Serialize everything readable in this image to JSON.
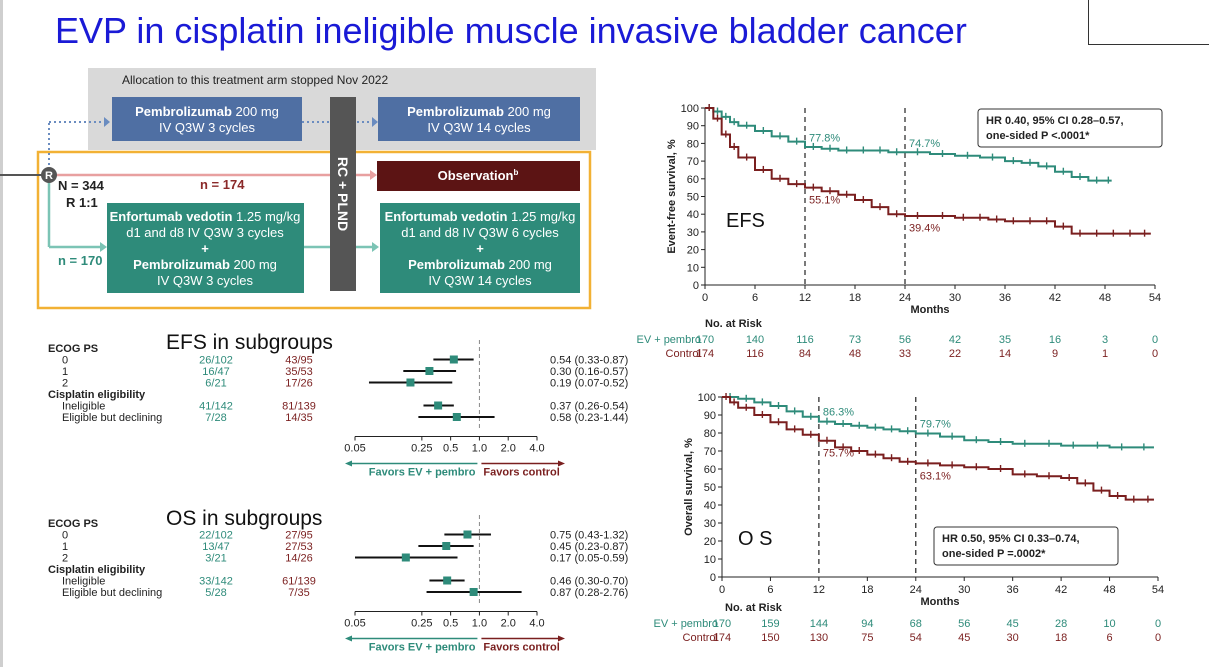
{
  "slide": {
    "title": "EVP in cisplatin ineligible muscle invasive bladder cancer"
  },
  "design": {
    "stopped_banner": "Allocation to this treatment arm stopped Nov 2022",
    "pembro_pre_bold": "Pembrolizumab",
    "pembro_pre_dose": " 200 mg",
    "pembro_pre_line2": "IV Q3W 3 cycles",
    "pembro_post_bold": "Pembrolizumab",
    "pembro_post_dose": " 200 mg",
    "pembro_post_line2": "IV Q3W 14 cycles",
    "r_label": "R",
    "n_total": "N = 344",
    "ratio": "R 1:1",
    "n_control": "n = 174",
    "n_ev": "n = 170",
    "surgery": "RC + PLND",
    "observation": "Observation",
    "observation_sup": "b",
    "ev_pre_bold": "Enfortumab vedotin",
    "ev_pre_dose": " 1.25 mg/kg",
    "ev_pre_line2": "d1 and d8 IV Q3W 3 cycles",
    "ev_pre_plus": "+",
    "ev_pre_pem_bold": "Pembrolizumab",
    "ev_pre_pem_dose": " 200 mg",
    "ev_pre_pem_line2": "IV Q3W 3 cycles",
    "ev_post_bold": "Enfortumab vedotin",
    "ev_post_dose": " 1.25 mg/kg",
    "ev_post_line2": "d1 and d8 IV Q3W 6 cycles",
    "ev_post_plus": "+",
    "ev_post_pem_bold": "Pembrolizumab",
    "ev_post_pem_dose": " 200 mg",
    "ev_post_pem_line2": "IV Q3W 14 cycles"
  },
  "subgroups": {
    "efs_title": "EFS in subgroups",
    "os_title": "OS in subgroups"
  },
  "colors": {
    "ev": "#2e8b7a",
    "control": "#7a1f1f",
    "title_blue": "#1a1ad6",
    "design_blue": "#4f6fa3",
    "design_teal": "#2e8b7a",
    "observation": "#5c1414",
    "frame": "#f2b134"
  },
  "chart_data": [
    {
      "type": "line",
      "panel": "EFS",
      "panel_label": "EFS",
      "ylabel": "Event-free survival, %",
      "xlabel": "Months",
      "xlim": [
        0,
        54
      ],
      "ylim": [
        0,
        100
      ],
      "xticks": [
        0,
        6,
        12,
        18,
        24,
        30,
        36,
        42,
        48,
        54
      ],
      "yticks": [
        0,
        10,
        20,
        30,
        40,
        50,
        60,
        70,
        80,
        90,
        100
      ],
      "series": [
        {
          "name": "EV + pembro",
          "color": "#2e8b7a",
          "x": [
            0,
            1,
            2,
            3,
            4,
            6,
            8,
            10,
            12,
            14,
            16,
            18,
            20,
            22,
            24,
            27,
            30,
            33,
            36,
            38,
            40,
            42,
            44,
            46,
            48,
            48.8
          ],
          "y": [
            100,
            98,
            95,
            92,
            90,
            87,
            84,
            81,
            78,
            77,
            76,
            76,
            76,
            75,
            75,
            74,
            73,
            72,
            70,
            69,
            67,
            64,
            61,
            59,
            59,
            59
          ]
        },
        {
          "name": "Control",
          "color": "#7a1f1f",
          "x": [
            0,
            1,
            2,
            3,
            4,
            6,
            8,
            10,
            12,
            14,
            16,
            18,
            20,
            22,
            24,
            27,
            30,
            32,
            34,
            36,
            38,
            40,
            42,
            44,
            46,
            48,
            50,
            52,
            53.5
          ],
          "y": [
            100,
            94,
            85,
            78,
            72,
            65,
            60,
            57,
            55,
            53,
            51,
            48,
            44,
            40,
            39,
            39,
            38,
            38,
            37,
            36,
            36,
            36,
            33,
            29,
            29,
            29,
            29,
            29,
            29
          ]
        }
      ],
      "annotations": [
        {
          "x": 12,
          "y": 77.8,
          "text": "77.8%",
          "series": "EV + pembro"
        },
        {
          "x": 24,
          "y": 74.7,
          "text": "74.7%",
          "series": "EV + pembro"
        },
        {
          "x": 12,
          "y": 55.1,
          "text": "55.1%",
          "series": "Control"
        },
        {
          "x": 24,
          "y": 39.4,
          "text": "39.4%",
          "series": "Control"
        }
      ],
      "dashed_vlines": [
        12,
        24
      ],
      "hr_box": [
        "HR 0.40, 95% CI 0.28–0.57,",
        "one-sided P <.0001*"
      ],
      "risk_table": {
        "header": "No. at Risk",
        "rows": [
          {
            "label": "EV + pembro",
            "values": [
              170,
              140,
              116,
              73,
              56,
              42,
              35,
              16,
              3,
              0
            ]
          },
          {
            "label": "Control",
            "values": [
              174,
              116,
              84,
              48,
              33,
              22,
              14,
              9,
              1,
              0
            ]
          }
        ]
      }
    },
    {
      "type": "line",
      "panel": "OS",
      "panel_label": "O S",
      "ylabel": "Overall survival, %",
      "xlabel": "Months",
      "xlim": [
        0,
        54
      ],
      "ylim": [
        0,
        100
      ],
      "xticks": [
        0,
        6,
        12,
        18,
        24,
        30,
        36,
        42,
        48,
        54
      ],
      "yticks": [
        0,
        10,
        20,
        30,
        40,
        50,
        60,
        70,
        80,
        90,
        100
      ],
      "series": [
        {
          "name": "EV + pembro",
          "color": "#2e8b7a",
          "x": [
            0,
            2,
            4,
            6,
            8,
            10,
            12,
            14,
            16,
            18,
            20,
            22,
            24,
            27,
            30,
            33,
            36,
            39,
            42,
            45,
            48,
            51,
            53.5
          ],
          "y": [
            100,
            99,
            97,
            95,
            92,
            89,
            86.3,
            85,
            84,
            83,
            82,
            81,
            79.7,
            78,
            76,
            75,
            74,
            74,
            73,
            73,
            72,
            72,
            72
          ]
        },
        {
          "name": "Control",
          "color": "#7a1f1f",
          "x": [
            0,
            1,
            2,
            4,
            6,
            8,
            10,
            12,
            14,
            16,
            18,
            20,
            22,
            24,
            27,
            30,
            33,
            36,
            39,
            42,
            44,
            46,
            48,
            50,
            52,
            53.5
          ],
          "y": [
            100,
            97,
            94,
            90,
            86,
            82,
            79,
            75.7,
            72,
            70,
            68,
            66,
            64,
            63.1,
            62,
            61,
            60,
            57,
            56,
            55,
            52,
            48,
            45,
            43,
            43,
            43
          ]
        }
      ],
      "annotations": [
        {
          "x": 12,
          "y": 86.3,
          "text": "86.3%",
          "series": "EV + pembro"
        },
        {
          "x": 24,
          "y": 79.7,
          "text": "79.7%",
          "series": "EV + pembro"
        },
        {
          "x": 12,
          "y": 75.7,
          "text": "75.7%",
          "series": "Control"
        },
        {
          "x": 24,
          "y": 63.1,
          "text": "63.1%",
          "series": "Control"
        }
      ],
      "dashed_vlines": [
        12,
        24
      ],
      "hr_box": [
        "HR 0.50, 95% CI 0.33–0.74,",
        "one-sided P =.0002*"
      ],
      "risk_table": {
        "header": "No. at Risk",
        "rows": [
          {
            "label": "EV + pembro",
            "values": [
              170,
              159,
              144,
              94,
              68,
              56,
              45,
              28,
              10,
              0
            ]
          },
          {
            "label": "Control",
            "values": [
              174,
              150,
              130,
              75,
              54,
              45,
              30,
              18,
              6,
              0
            ]
          }
        ]
      }
    },
    {
      "type": "scatter",
      "panel": "EFS forest",
      "x_scale": "log",
      "xticks": [
        "0.05",
        "0.25",
        "0.5",
        "1.0",
        "2.0",
        "4.0"
      ],
      "reference_line": 1.0,
      "favors_left": "Favors EV + pembro",
      "favors_right": "Favors control",
      "rows": [
        {
          "label": "ECOG PS",
          "header": true
        },
        {
          "label": "0",
          "ev": "26/102",
          "control": "43/95",
          "hr": 0.54,
          "lo": 0.33,
          "hi": 0.87,
          "text": "0.54 (0.33-0.87)"
        },
        {
          "label": "1",
          "ev": "16/47",
          "control": "35/53",
          "hr": 0.3,
          "lo": 0.16,
          "hi": 0.57,
          "text": "0.30 (0.16-0.57)"
        },
        {
          "label": "2",
          "ev": "6/21",
          "control": "17/26",
          "hr": 0.19,
          "lo": 0.07,
          "hi": 0.52,
          "text": "0.19 (0.07-0.52)"
        },
        {
          "label": "Cisplatin eligibility",
          "header": true
        },
        {
          "label": "Ineligible",
          "ev": "41/142",
          "control": "81/139",
          "hr": 0.37,
          "lo": 0.26,
          "hi": 0.54,
          "text": "0.37 (0.26-0.54)"
        },
        {
          "label": "Eligible but declining",
          "ev": "7/28",
          "control": "14/35",
          "hr": 0.58,
          "lo": 0.23,
          "hi": 1.44,
          "text": "0.58 (0.23-1.44)"
        }
      ]
    },
    {
      "type": "scatter",
      "panel": "OS forest",
      "x_scale": "log",
      "xticks": [
        "0.05",
        "0.25",
        "0.5",
        "1.0",
        "2.0",
        "4.0"
      ],
      "reference_line": 1.0,
      "favors_left": "Favors EV + pembro",
      "favors_right": "Favors control",
      "rows": [
        {
          "label": "ECOG PS",
          "header": true
        },
        {
          "label": "0",
          "ev": "22/102",
          "control": "27/95",
          "hr": 0.75,
          "lo": 0.43,
          "hi": 1.32,
          "text": "0.75 (0.43-1.32)"
        },
        {
          "label": "1",
          "ev": "13/47",
          "control": "27/53",
          "hr": 0.45,
          "lo": 0.23,
          "hi": 0.87,
          "text": "0.45 (0.23-0.87)"
        },
        {
          "label": "2",
          "ev": "3/21",
          "control": "14/26",
          "hr": 0.17,
          "lo": 0.05,
          "hi": 0.59,
          "text": "0.17 (0.05-0.59)"
        },
        {
          "label": "Cisplatin eligibility",
          "header": true
        },
        {
          "label": "Ineligible",
          "ev": "33/142",
          "control": "61/139",
          "hr": 0.46,
          "lo": 0.3,
          "hi": 0.7,
          "text": "0.46 (0.30-0.70)"
        },
        {
          "label": "Eligible but declining",
          "ev": "5/28",
          "control": "7/35",
          "hr": 0.87,
          "lo": 0.28,
          "hi": 2.76,
          "text": "0.87 (0.28-2.76)"
        }
      ]
    }
  ]
}
